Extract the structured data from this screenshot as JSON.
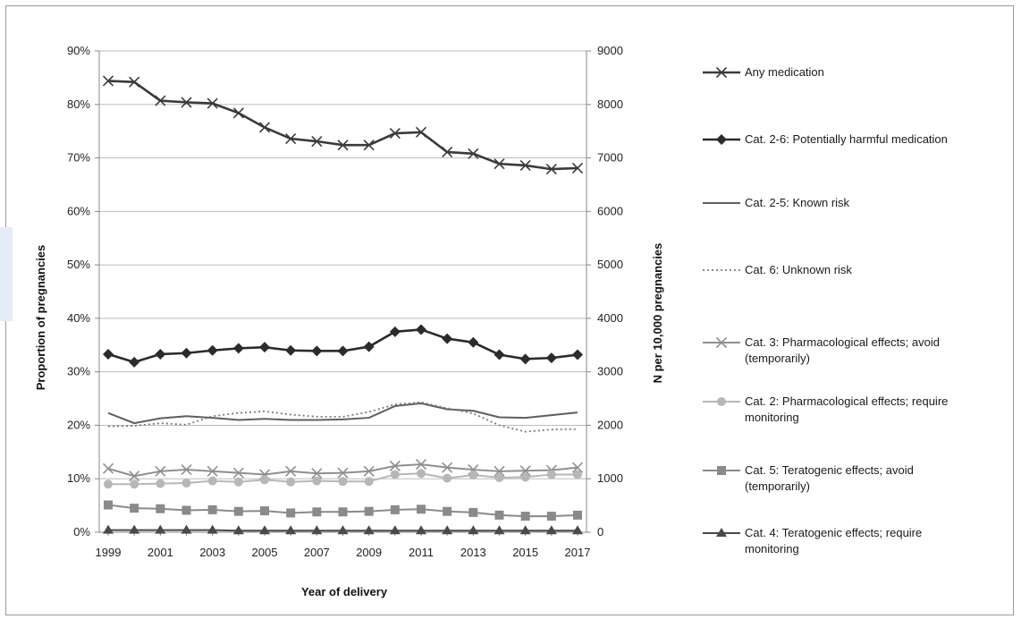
{
  "chart_data": {
    "type": "line",
    "xlabel": "Year of delivery",
    "ylabel": "Proportion of pregnancies",
    "y2label": "N per 10,000 pregnancies",
    "x": [
      1999,
      2000,
      2001,
      2002,
      2003,
      2004,
      2005,
      2006,
      2007,
      2008,
      2009,
      2010,
      2011,
      2012,
      2013,
      2014,
      2015,
      2016,
      2017
    ],
    "x_tick_labels": [
      "1999",
      "2001",
      "2003",
      "2005",
      "2007",
      "2009",
      "2011",
      "2013",
      "2015",
      "2017"
    ],
    "ylim": [
      0,
      90
    ],
    "y_tick_labels": [
      "0%",
      "10%",
      "20%",
      "30%",
      "40%",
      "50%",
      "60%",
      "70%",
      "80%",
      "90%"
    ],
    "y2lim": [
      0,
      9000
    ],
    "y2_tick_labels": [
      "0",
      "1000",
      "2000",
      "3000",
      "4000",
      "5000",
      "6000",
      "7000",
      "8000",
      "9000"
    ],
    "grid": "horizontal",
    "legend_position": "right",
    "series": [
      {
        "name": "Any medication",
        "marker": "x",
        "color": "#3a3a3a",
        "values": [
          84.4,
          84.2,
          80.7,
          80.4,
          80.2,
          78.4,
          75.7,
          73.6,
          73.1,
          72.4,
          72.4,
          74.6,
          74.8,
          71.1,
          70.8,
          68.9,
          68.6,
          67.9,
          68.1
        ]
      },
      {
        "name": "Cat. 2-6: Potentially harmful medication",
        "marker": "diamond",
        "color": "#2b2b2b",
        "values": [
          33.3,
          31.8,
          33.3,
          33.5,
          34.0,
          34.4,
          34.6,
          34.0,
          33.9,
          33.9,
          34.7,
          37.5,
          37.9,
          36.2,
          35.5,
          33.2,
          32.4,
          32.6,
          33.2
        ]
      },
      {
        "name": "Cat. 2-5: Known risk",
        "marker": "none",
        "color": "#5e5e5e",
        "values": [
          22.3,
          20.4,
          21.3,
          21.7,
          21.4,
          21.0,
          21.2,
          21.0,
          21.0,
          21.1,
          21.4,
          23.6,
          24.1,
          23.0,
          22.7,
          21.5,
          21.4,
          21.9,
          22.4
        ]
      },
      {
        "name": "Cat. 6: Unknown risk",
        "marker": "none",
        "color": "#7a7a7a",
        "values": [
          19.8,
          19.9,
          20.4,
          20.1,
          21.7,
          22.3,
          22.6,
          22.0,
          21.6,
          21.6,
          22.5,
          23.9,
          24.3,
          23.2,
          22.2,
          20.0,
          18.8,
          19.2,
          19.3
        ]
      },
      {
        "name": "Cat. 3: Pharmacological effects; avoid (temporarily)",
        "marker": "x",
        "color": "#8f8f8f",
        "values": [
          11.9,
          10.5,
          11.4,
          11.7,
          11.4,
          11.1,
          10.8,
          11.4,
          11.0,
          11.1,
          11.4,
          12.4,
          12.7,
          12.1,
          11.7,
          11.4,
          11.5,
          11.6,
          12.1
        ]
      },
      {
        "name": "Cat. 2: Pharmacological effects; require monitoring",
        "marker": "circle",
        "color": "#b7b7b7",
        "values": [
          9.0,
          9.0,
          9.1,
          9.2,
          9.6,
          9.4,
          9.8,
          9.4,
          9.6,
          9.5,
          9.5,
          10.8,
          11.0,
          10.1,
          10.7,
          10.2,
          10.3,
          10.8,
          10.8
        ]
      },
      {
        "name": "Cat. 5: Teratogenic effects; avoid (temporarily)",
        "marker": "square",
        "color": "#8a8a8a",
        "values": [
          5.1,
          4.5,
          4.4,
          4.1,
          4.2,
          3.9,
          4.0,
          3.6,
          3.8,
          3.8,
          3.9,
          4.2,
          4.3,
          3.9,
          3.7,
          3.2,
          3.0,
          3.0,
          3.2
        ]
      },
      {
        "name": "Cat. 4: Teratogenic effects; require monitoring",
        "marker": "triangle",
        "color": "#4a4a4a",
        "values": [
          0.4,
          0.4,
          0.4,
          0.4,
          0.4,
          0.3,
          0.3,
          0.3,
          0.3,
          0.3,
          0.3,
          0.3,
          0.3,
          0.3,
          0.3,
          0.3,
          0.3,
          0.3,
          0.3
        ]
      }
    ],
    "legend_lines": [
      [
        "Any medication"
      ],
      [
        "Cat. 2-6: Potentially harmful medication"
      ],
      [
        "Cat. 2-5: Known risk"
      ],
      [
        "Cat. 6: Unknown risk"
      ],
      [
        "Cat. 3: Pharmacological effects; avoid",
        "(temporarily)"
      ],
      [
        "Cat. 2: Pharmacological effects; require",
        "monitoring"
      ],
      [
        "Cat. 5: Teratogenic effects; avoid",
        "(temporarily)"
      ],
      [
        "Cat. 4: Teratogenic effects; require",
        "monitoring"
      ]
    ]
  }
}
